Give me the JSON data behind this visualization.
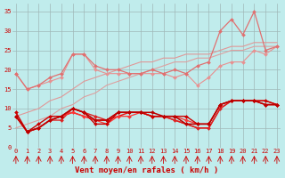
{
  "title": "",
  "xlabel": "Vent moyen/en rafales ( km/h )",
  "background_color": "#c0ecec",
  "grid_color": "#a0b8b8",
  "x": [
    0,
    1,
    2,
    3,
    4,
    5,
    6,
    7,
    8,
    9,
    10,
    11,
    12,
    13,
    14,
    15,
    16,
    17,
    18,
    19,
    20,
    21,
    22,
    23
  ],
  "lines": [
    {
      "y": [
        19,
        15,
        16,
        17,
        18,
        24,
        24,
        20,
        19,
        19,
        19,
        19,
        19,
        19,
        18,
        19,
        16,
        18,
        21,
        22,
        22,
        25,
        24,
        26
      ],
      "color": "#e89090",
      "marker": "D",
      "markersize": 2.0,
      "linewidth": 0.8,
      "zorder": 2
    },
    {
      "y": [
        8,
        9,
        10,
        12,
        13,
        15,
        17,
        18,
        19,
        20,
        21,
        22,
        22,
        23,
        23,
        24,
        24,
        24,
        25,
        26,
        26,
        27,
        27,
        27
      ],
      "color": "#e09898",
      "marker": null,
      "markersize": 2.0,
      "linewidth": 0.8,
      "zorder": 2
    },
    {
      "y": [
        5,
        6,
        7,
        8,
        10,
        11,
        13,
        14,
        16,
        17,
        18,
        19,
        20,
        21,
        22,
        22,
        23,
        23,
        24,
        25,
        25,
        26,
        26,
        26
      ],
      "color": "#dda0a0",
      "marker": null,
      "markersize": 2.0,
      "linewidth": 0.8,
      "zorder": 2
    },
    {
      "y": [
        19,
        15,
        16,
        18,
        19,
        24,
        24,
        21,
        20,
        20,
        19,
        19,
        20,
        19,
        20,
        19,
        21,
        22,
        30,
        33,
        29,
        35,
        25,
        26
      ],
      "color": "#e07070",
      "marker": "D",
      "markersize": 2.0,
      "linewidth": 0.9,
      "zorder": 3
    },
    {
      "y": [
        9,
        4,
        6,
        8,
        8,
        10,
        9,
        6,
        6,
        9,
        9,
        9,
        8,
        8,
        8,
        8,
        6,
        6,
        11,
        12,
        12,
        12,
        12,
        11
      ],
      "color": "#cc0000",
      "marker": "D",
      "markersize": 2.0,
      "linewidth": 1.0,
      "zorder": 5
    },
    {
      "y": [
        8,
        4,
        5,
        7,
        7,
        10,
        9,
        8,
        7,
        9,
        9,
        9,
        8,
        8,
        7,
        6,
        5,
        5,
        10,
        12,
        12,
        12,
        11,
        11
      ],
      "color": "#dd2222",
      "marker": "D",
      "markersize": 2.0,
      "linewidth": 1.0,
      "zorder": 4
    },
    {
      "y": [
        8,
        4,
        5,
        7,
        8,
        9,
        8,
        7,
        6,
        8,
        8,
        9,
        8,
        8,
        8,
        7,
        6,
        6,
        11,
        12,
        12,
        12,
        11,
        11
      ],
      "color": "#ff3333",
      "marker": "D",
      "markersize": 2.0,
      "linewidth": 0.9,
      "zorder": 4
    },
    {
      "y": [
        8,
        4,
        5,
        7,
        8,
        9,
        8,
        7,
        7,
        8,
        9,
        9,
        8,
        8,
        7,
        6,
        5,
        5,
        10,
        12,
        12,
        12,
        12,
        11
      ],
      "color": "#ee1111",
      "marker": null,
      "markersize": 2.0,
      "linewidth": 1.0,
      "zorder": 3
    },
    {
      "y": [
        8,
        4,
        5,
        7,
        8,
        10,
        9,
        7,
        7,
        9,
        9,
        9,
        9,
        8,
        8,
        6,
        6,
        6,
        11,
        12,
        12,
        12,
        11,
        11
      ],
      "color": "#bb0000",
      "marker": "D",
      "markersize": 2.0,
      "linewidth": 1.1,
      "zorder": 5
    }
  ],
  "ylim": [
    0,
    37
  ],
  "xlim": [
    -0.3,
    23.3
  ],
  "yticks": [
    0,
    5,
    10,
    15,
    20,
    25,
    30,
    35
  ],
  "xticks": [
    0,
    1,
    2,
    3,
    4,
    5,
    6,
    7,
    8,
    9,
    10,
    11,
    12,
    13,
    14,
    15,
    16,
    17,
    18,
    19,
    20,
    21,
    22,
    23
  ],
  "tick_label_color": "#cc0000",
  "tick_label_fontsize": 5.0,
  "xlabel_fontsize": 6.5,
  "xlabel_color": "#cc0000"
}
